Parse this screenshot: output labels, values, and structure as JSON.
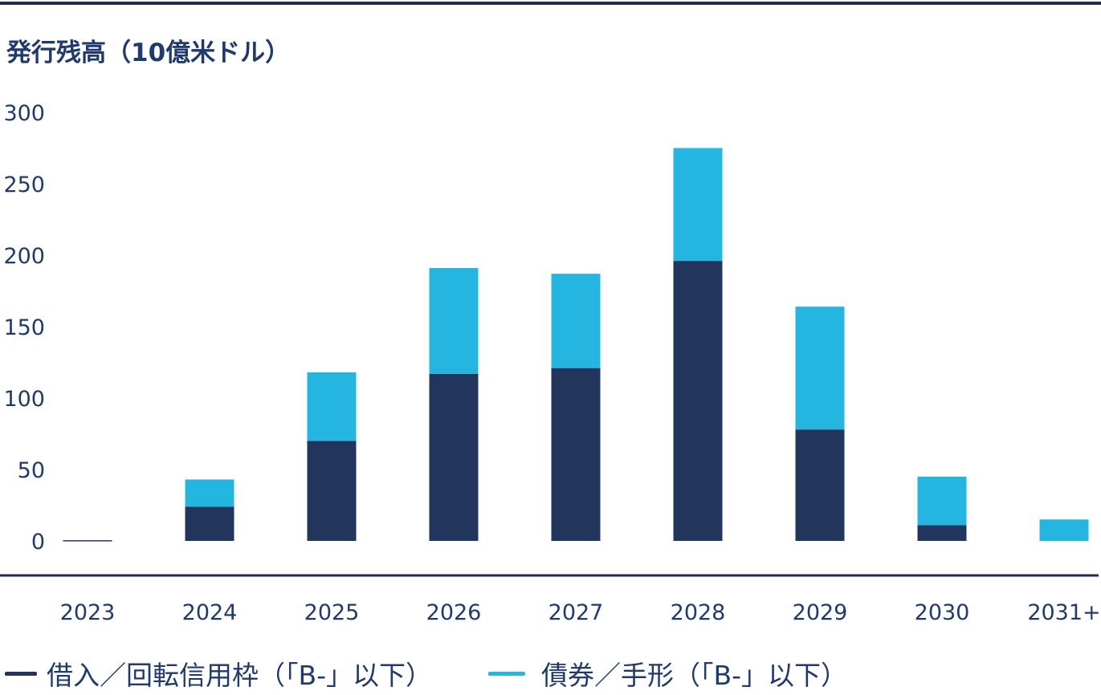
{
  "chart_data": {
    "type": "bar",
    "stacked": true,
    "title": "発行残高（10億米ドル）",
    "categories": [
      "2023",
      "2024",
      "2025",
      "2026",
      "2027",
      "2028",
      "2029",
      "2030",
      "2031+"
    ],
    "series": [
      {
        "name": "借入／回転信用枠（「B-」以下）",
        "color": "#22355c",
        "values": [
          0.5,
          24,
          70,
          117,
          121,
          196,
          78,
          11,
          0
        ]
      },
      {
        "name": "債券／手形（「B-」以下）",
        "color": "#24b6e1",
        "values": [
          0,
          19,
          48,
          74,
          66,
          79,
          86,
          34,
          15
        ]
      }
    ],
    "yticks": [
      "0",
      "50",
      "100",
      "150",
      "200",
      "250",
      "300"
    ],
    "ylim": [
      0,
      300
    ],
    "grid": false,
    "legend_position": "bottom-left"
  }
}
